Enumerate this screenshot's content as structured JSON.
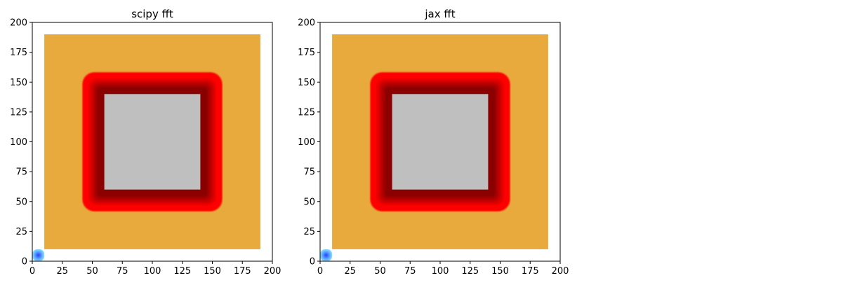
{
  "chart_data": [
    {
      "type": "heatmap",
      "title": "scipy fft",
      "xlim": [
        0,
        200
      ],
      "ylim": [
        0,
        200
      ],
      "xticks": [
        0,
        25,
        50,
        75,
        100,
        125,
        150,
        175,
        200
      ],
      "yticks": [
        0,
        25,
        50,
        75,
        100,
        125,
        150,
        175,
        200
      ],
      "regions": [
        {
          "name": "outer-band",
          "from": 0,
          "to": 10,
          "stops": [
            [
              0,
              "#86e4ff"
            ],
            [
              7,
              "#0000ff"
            ],
            [
              10,
              "#0000ff"
            ]
          ]
        },
        {
          "name": "background",
          "from": 10,
          "to": 190,
          "color": "#e8aa3c"
        },
        {
          "name": "ring",
          "from": 41,
          "to": 159,
          "stops": [
            [
              0,
              "#e8aa3c"
            ],
            [
              1.5,
              "#ff0000"
            ],
            [
              5,
              "#ff0000"
            ],
            [
              14,
              "#8b0000"
            ],
            [
              19,
              "#8b0000"
            ]
          ]
        },
        {
          "name": "center",
          "from": 60,
          "to": 140,
          "color": "#bfbfbf"
        }
      ]
    },
    {
      "type": "heatmap",
      "title": "jax fft",
      "xlim": [
        0,
        200
      ],
      "ylim": [
        0,
        200
      ],
      "xticks": [
        0,
        25,
        50,
        75,
        100,
        125,
        150,
        175,
        200
      ],
      "yticks": [
        0,
        25,
        50,
        75,
        100,
        125,
        150,
        175,
        200
      ],
      "regions": [
        {
          "name": "outer-band",
          "from": 0,
          "to": 10,
          "stops": [
            [
              0,
              "#86e4ff"
            ],
            [
              7,
              "#0000ff"
            ],
            [
              10,
              "#0000ff"
            ]
          ]
        },
        {
          "name": "background",
          "from": 10,
          "to": 190,
          "color": "#e8aa3c"
        },
        {
          "name": "ring",
          "from": 41,
          "to": 159,
          "stops": [
            [
              0,
              "#e8aa3c"
            ],
            [
              1.5,
              "#ff0000"
            ],
            [
              5,
              "#ff0000"
            ],
            [
              14,
              "#8b0000"
            ],
            [
              19,
              "#8b0000"
            ]
          ]
        },
        {
          "name": "center",
          "from": 60,
          "to": 140,
          "color": "#bfbfbf"
        }
      ]
    }
  ]
}
